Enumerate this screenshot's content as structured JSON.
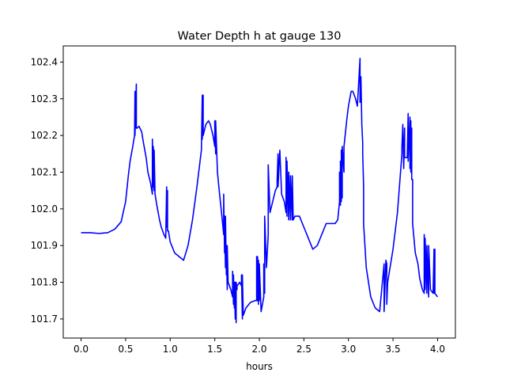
{
  "chart_data": {
    "type": "line",
    "title": "Water Depth h at gauge 130",
    "xlabel": "hours",
    "ylabel": "",
    "xlim": [
      -0.2,
      4.2
    ],
    "ylim": [
      101.648,
      102.444
    ],
    "xticks": [
      0.0,
      0.5,
      1.0,
      1.5,
      2.0,
      2.5,
      3.0,
      3.5,
      4.0
    ],
    "xtick_labels": [
      "0.0",
      "0.5",
      "1.0",
      "1.5",
      "2.0",
      "2.5",
      "3.0",
      "3.5",
      "4.0"
    ],
    "yticks": [
      101.7,
      101.8,
      101.9,
      102.0,
      102.1,
      102.2,
      102.3,
      102.4
    ],
    "ytick_labels": [
      "101.7",
      "101.8",
      "101.9",
      "102.0",
      "102.1",
      "102.2",
      "102.3",
      "102.4"
    ],
    "grid": false,
    "legend": "none",
    "series": [
      {
        "color": "#0000ff",
        "x": [
          0.0,
          0.1,
          0.2,
          0.3,
          0.38,
          0.45,
          0.5,
          0.53,
          0.55,
          0.58,
          0.6,
          0.605,
          0.605,
          0.62,
          0.62,
          0.63,
          0.65,
          0.68,
          0.7,
          0.73,
          0.75,
          0.78,
          0.8,
          0.8,
          0.81,
          0.81,
          0.82,
          0.82,
          0.83,
          0.83,
          0.85,
          0.88,
          0.9,
          0.93,
          0.95,
          0.96,
          0.96,
          0.97,
          0.97,
          0.98,
          1.0,
          1.05,
          1.1,
          1.15,
          1.2,
          1.25,
          1.3,
          1.33,
          1.35,
          1.36,
          1.36,
          1.37,
          1.37,
          1.4,
          1.43,
          1.45,
          1.48,
          1.5,
          1.5,
          1.51,
          1.51,
          1.53,
          1.55,
          1.58,
          1.6,
          1.6,
          1.61,
          1.61,
          1.62,
          1.62,
          1.63,
          1.63,
          1.64,
          1.64,
          1.65,
          1.68,
          1.7,
          1.7,
          1.71,
          1.71,
          1.72,
          1.72,
          1.73,
          1.73,
          1.74,
          1.74,
          1.75,
          1.75,
          1.78,
          1.8,
          1.8,
          1.81,
          1.81,
          1.82,
          1.82,
          1.85,
          1.9,
          1.95,
          1.97,
          1.97,
          1.98,
          1.98,
          1.99,
          1.99,
          2.0,
          2.0,
          2.02,
          2.05,
          2.05,
          2.06,
          2.06,
          2.08,
          2.1,
          2.1,
          2.12,
          2.15,
          2.18,
          2.2,
          2.2,
          2.21,
          2.21,
          2.23,
          2.25,
          2.28,
          2.3,
          2.3,
          2.31,
          2.31,
          2.33,
          2.33,
          2.35,
          2.35,
          2.37,
          2.37,
          2.38,
          2.4,
          2.45,
          2.5,
          2.55,
          2.6,
          2.65,
          2.7,
          2.75,
          2.8,
          2.85,
          2.88,
          2.9,
          2.9,
          2.91,
          2.91,
          2.92,
          2.92,
          2.93,
          2.93,
          2.95,
          2.95,
          2.98,
          3.0,
          3.03,
          3.05,
          3.08,
          3.1,
          3.13,
          3.13,
          3.14,
          3.15,
          3.15,
          3.16,
          3.16,
          3.17,
          3.17,
          3.2,
          3.25,
          3.3,
          3.35,
          3.4,
          3.4,
          3.42,
          3.43,
          3.43,
          3.44,
          3.5,
          3.55,
          3.6,
          3.6,
          3.61,
          3.62,
          3.63,
          3.63,
          3.64,
          3.65,
          3.66,
          3.67,
          3.67,
          3.69,
          3.69,
          3.7,
          3.7,
          3.71,
          3.71,
          3.72,
          3.72,
          3.75,
          3.78,
          3.8,
          3.83,
          3.85,
          3.85,
          3.86,
          3.86,
          3.88,
          3.88,
          3.9,
          3.9,
          3.92,
          3.95,
          3.96,
          3.96,
          3.97,
          3.97,
          4.0
        ],
        "y": [
          101.935,
          101.935,
          101.933,
          101.935,
          101.945,
          101.965,
          102.02,
          102.09,
          102.13,
          102.17,
          102.2,
          102.32,
          102.2,
          102.34,
          102.22,
          102.22,
          102.225,
          102.21,
          102.18,
          102.14,
          102.1,
          102.07,
          102.04,
          102.19,
          102.06,
          102.17,
          102.05,
          102.16,
          102.04,
          102.04,
          102.01,
          101.97,
          101.95,
          101.93,
          101.92,
          102.06,
          101.95,
          102.05,
          101.94,
          101.94,
          101.91,
          101.88,
          101.87,
          101.86,
          101.9,
          101.97,
          102.06,
          102.12,
          102.16,
          102.31,
          102.19,
          102.31,
          102.2,
          102.23,
          102.24,
          102.23,
          102.2,
          102.17,
          102.24,
          102.15,
          102.24,
          102.1,
          102.05,
          101.98,
          101.93,
          102.04,
          101.88,
          101.98,
          101.84,
          101.98,
          101.82,
          101.9,
          101.78,
          101.9,
          101.8,
          101.78,
          101.76,
          101.83,
          101.74,
          101.82,
          101.73,
          101.8,
          101.7,
          101.8,
          101.69,
          101.8,
          101.78,
          101.79,
          101.8,
          101.79,
          101.82,
          101.7,
          101.82,
          101.71,
          101.71,
          101.73,
          101.745,
          101.75,
          101.75,
          101.87,
          101.75,
          101.87,
          101.74,
          101.86,
          101.75,
          101.85,
          101.72,
          101.76,
          101.85,
          101.77,
          101.98,
          101.84,
          101.93,
          102.12,
          101.99,
          102.02,
          102.05,
          102.06,
          102.08,
          102.15,
          102.06,
          102.16,
          102.04,
          102.02,
          101.99,
          102.14,
          101.98,
          102.13,
          101.97,
          102.1,
          101.97,
          102.09,
          101.97,
          102.09,
          101.97,
          101.98,
          101.98,
          101.95,
          101.92,
          101.89,
          101.9,
          101.93,
          101.96,
          101.96,
          101.96,
          101.97,
          102.02,
          102.1,
          102.01,
          102.13,
          102.02,
          102.16,
          102.03,
          102.17,
          102.1,
          102.17,
          102.24,
          102.28,
          102.32,
          102.32,
          102.3,
          102.28,
          102.41,
          102.29,
          102.36,
          102.23,
          102.23,
          102.18,
          102.15,
          102.06,
          101.96,
          101.84,
          101.76,
          101.73,
          101.72,
          101.85,
          101.72,
          101.86,
          101.85,
          101.74,
          101.8,
          101.89,
          101.99,
          102.15,
          102.17,
          102.23,
          102.11,
          102.22,
          102.14,
          102.14,
          102.14,
          102.14,
          102.26,
          102.13,
          102.25,
          102.11,
          102.24,
          102.1,
          102.22,
          102.08,
          102.08,
          101.96,
          101.88,
          101.85,
          101.81,
          101.78,
          101.77,
          101.93,
          101.78,
          101.92,
          101.77,
          101.9,
          101.76,
          101.9,
          101.78,
          101.77,
          101.89,
          101.77,
          101.89,
          101.77,
          101.76
        ]
      }
    ]
  }
}
